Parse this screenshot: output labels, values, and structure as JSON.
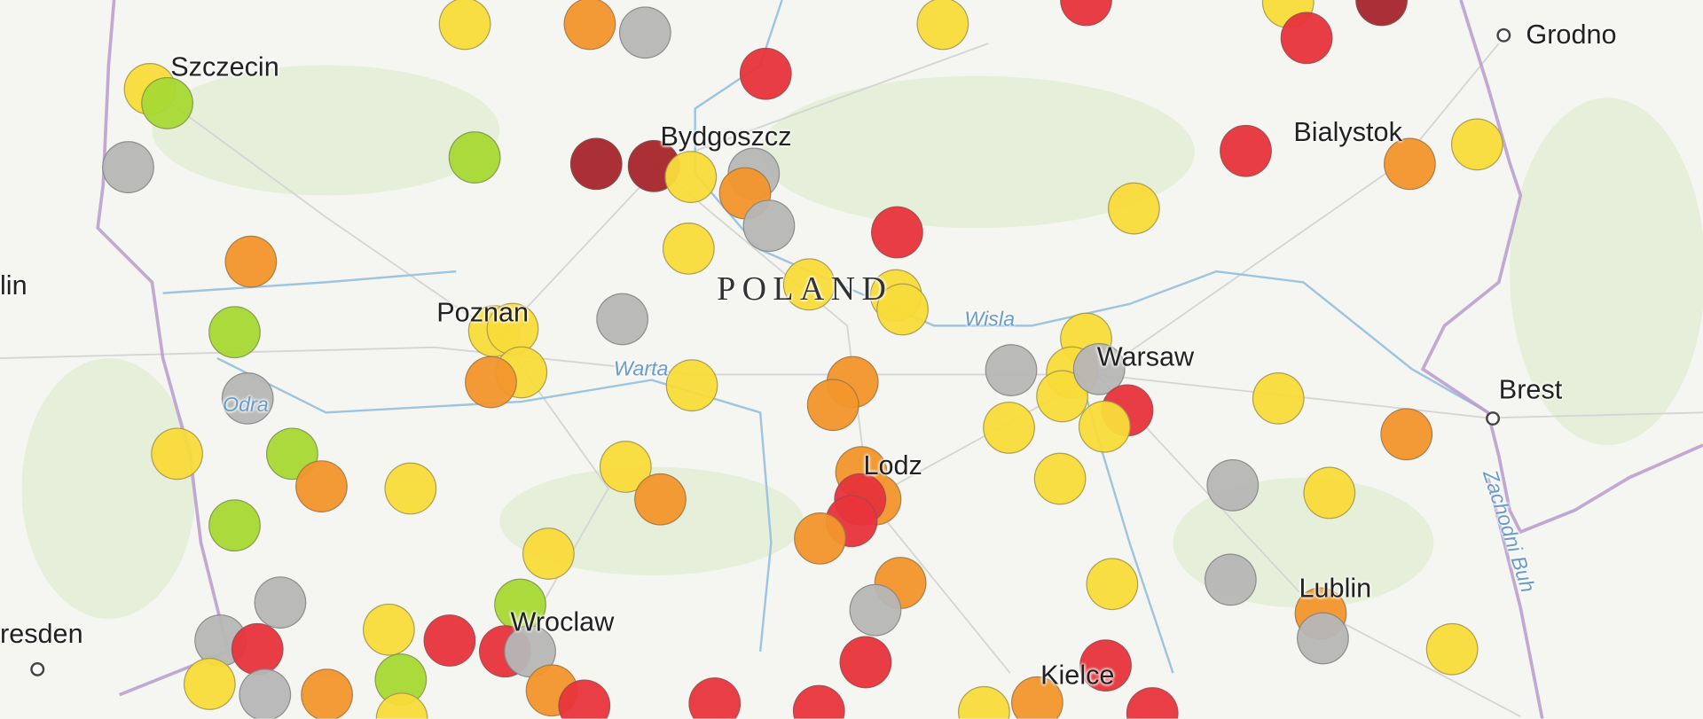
{
  "map": {
    "country_label": "POLAND",
    "cities": [
      "Szczecin",
      "Bydgoszcz",
      "Bialystok",
      "Grodno",
      "lin",
      "Poznan",
      "Warsaw",
      "Brest",
      "Lodz",
      "Lublin",
      "resden",
      "Wroclaw",
      "Kielce"
    ],
    "rivers": [
      "Wisla",
      "Warta",
      "Odra",
      "Zachodni Buh"
    ],
    "marker_colors": {
      "yellow": "#f9dc3a",
      "orange": "#f3962c",
      "red": "#e8343b",
      "darkred": "#a8262b",
      "gray": "#b7b7b7",
      "green": "#a8d934"
    }
  }
}
